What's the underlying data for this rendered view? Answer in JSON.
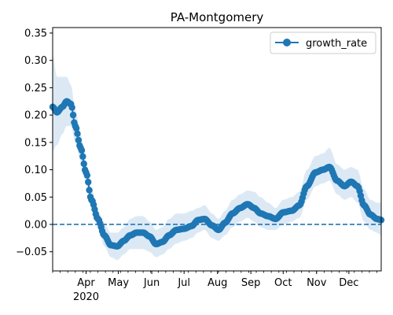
{
  "chart_data": {
    "type": "line",
    "title": "PA-Montgomery",
    "xlabel": "",
    "ylabel": "",
    "x_start": "2020-03-01",
    "x_end": "2020-12-31",
    "xlim": [
      "2020-03-01",
      "2020-12-31"
    ],
    "ylim": [
      -0.085,
      0.36
    ],
    "yticks": [
      -0.05,
      0.0,
      0.05,
      0.1,
      0.15,
      0.2,
      0.25,
      0.3,
      0.35
    ],
    "ytick_labels": [
      "−0.05",
      "0.00",
      "0.05",
      "0.10",
      "0.15",
      "0.20",
      "0.25",
      "0.30",
      "0.35"
    ],
    "xtick_labels": [
      {
        "date": "2020-04-01",
        "label": "Apr",
        "sublabel": "2020"
      },
      {
        "date": "2020-05-01",
        "label": "May"
      },
      {
        "date": "2020-06-01",
        "label": "Jun"
      },
      {
        "date": "2020-07-01",
        "label": "Jul"
      },
      {
        "date": "2020-08-01",
        "label": "Aug"
      },
      {
        "date": "2020-09-01",
        "label": "Sep"
      },
      {
        "date": "2020-10-01",
        "label": "Oct"
      },
      {
        "date": "2020-11-01",
        "label": "Nov"
      },
      {
        "date": "2020-12-01",
        "label": "Dec"
      }
    ],
    "legend": {
      "position": "top-right",
      "entries": [
        "growth_rate"
      ]
    },
    "reference_line": {
      "y": 0.0,
      "style": "dashed",
      "color": "#1f77b4"
    },
    "colors": {
      "series": "#1f77b4",
      "band": "#dce9f5"
    },
    "keypoints": [
      {
        "x": "2020-03-01",
        "y": 0.215,
        "lo": 0.135,
        "hi": 0.31
      },
      {
        "x": "2020-03-05",
        "y": 0.205,
        "lo": 0.145,
        "hi": 0.27
      },
      {
        "x": "2020-03-10",
        "y": 0.215,
        "lo": 0.165,
        "hi": 0.27
      },
      {
        "x": "2020-03-14",
        "y": 0.225,
        "lo": 0.18,
        "hi": 0.27
      },
      {
        "x": "2020-03-18",
        "y": 0.22,
        "lo": 0.18,
        "hi": 0.255
      },
      {
        "x": "2020-03-22",
        "y": 0.18,
        "lo": 0.15,
        "hi": 0.21
      },
      {
        "x": "2020-03-27",
        "y": 0.14,
        "lo": 0.115,
        "hi": 0.165
      },
      {
        "x": "2020-04-01",
        "y": 0.095,
        "lo": 0.075,
        "hi": 0.115
      },
      {
        "x": "2020-04-06",
        "y": 0.045,
        "lo": 0.03,
        "hi": 0.065
      },
      {
        "x": "2020-04-12",
        "y": 0.01,
        "lo": -0.005,
        "hi": 0.025
      },
      {
        "x": "2020-04-18",
        "y": -0.02,
        "lo": -0.04,
        "hi": 0.0
      },
      {
        "x": "2020-04-24",
        "y": -0.038,
        "lo": -0.06,
        "hi": -0.015
      },
      {
        "x": "2020-04-30",
        "y": -0.04,
        "lo": -0.065,
        "hi": -0.015
      },
      {
        "x": "2020-05-06",
        "y": -0.03,
        "lo": -0.055,
        "hi": -0.005
      },
      {
        "x": "2020-05-12",
        "y": -0.02,
        "lo": -0.045,
        "hi": 0.01
      },
      {
        "x": "2020-05-18",
        "y": -0.015,
        "lo": -0.045,
        "hi": 0.015
      },
      {
        "x": "2020-05-24",
        "y": -0.015,
        "lo": -0.045,
        "hi": 0.015
      },
      {
        "x": "2020-05-30",
        "y": -0.022,
        "lo": -0.05,
        "hi": 0.005
      },
      {
        "x": "2020-06-05",
        "y": -0.036,
        "lo": -0.06,
        "hi": -0.01
      },
      {
        "x": "2020-06-11",
        "y": -0.032,
        "lo": -0.055,
        "hi": -0.005
      },
      {
        "x": "2020-06-17",
        "y": -0.02,
        "lo": -0.045,
        "hi": 0.01
      },
      {
        "x": "2020-06-24",
        "y": -0.01,
        "lo": -0.035,
        "hi": 0.02
      },
      {
        "x": "2020-07-01",
        "y": -0.008,
        "lo": -0.03,
        "hi": 0.02
      },
      {
        "x": "2020-07-08",
        "y": -0.003,
        "lo": -0.025,
        "hi": 0.025
      },
      {
        "x": "2020-07-14",
        "y": 0.008,
        "lo": -0.015,
        "hi": 0.03
      },
      {
        "x": "2020-07-20",
        "y": 0.01,
        "lo": -0.01,
        "hi": 0.035
      },
      {
        "x": "2020-07-27",
        "y": -0.002,
        "lo": -0.025,
        "hi": 0.02
      },
      {
        "x": "2020-08-02",
        "y": -0.01,
        "lo": -0.03,
        "hi": 0.01
      },
      {
        "x": "2020-08-08",
        "y": 0.003,
        "lo": -0.02,
        "hi": 0.025
      },
      {
        "x": "2020-08-15",
        "y": 0.02,
        "lo": -0.005,
        "hi": 0.045
      },
      {
        "x": "2020-08-22",
        "y": 0.03,
        "lo": 0.005,
        "hi": 0.055
      },
      {
        "x": "2020-08-29",
        "y": 0.037,
        "lo": 0.012,
        "hi": 0.062
      },
      {
        "x": "2020-09-04",
        "y": 0.03,
        "lo": 0.005,
        "hi": 0.06
      },
      {
        "x": "2020-09-10",
        "y": 0.02,
        "lo": -0.005,
        "hi": 0.05
      },
      {
        "x": "2020-09-17",
        "y": 0.015,
        "lo": -0.01,
        "hi": 0.04
      },
      {
        "x": "2020-09-24",
        "y": 0.01,
        "lo": -0.01,
        "hi": 0.03
      },
      {
        "x": "2020-10-01",
        "y": 0.022,
        "lo": 0.0,
        "hi": 0.045
      },
      {
        "x": "2020-10-09",
        "y": 0.025,
        "lo": 0.005,
        "hi": 0.05
      },
      {
        "x": "2020-10-16",
        "y": 0.035,
        "lo": 0.012,
        "hi": 0.06
      },
      {
        "x": "2020-10-23",
        "y": 0.07,
        "lo": 0.045,
        "hi": 0.1
      },
      {
        "x": "2020-10-31",
        "y": 0.095,
        "lo": 0.07,
        "hi": 0.125
      },
      {
        "x": "2020-11-07",
        "y": 0.1,
        "lo": 0.075,
        "hi": 0.13
      },
      {
        "x": "2020-11-13",
        "y": 0.105,
        "lo": 0.08,
        "hi": 0.14
      },
      {
        "x": "2020-11-20",
        "y": 0.08,
        "lo": 0.055,
        "hi": 0.11
      },
      {
        "x": "2020-11-27",
        "y": 0.07,
        "lo": 0.045,
        "hi": 0.1
      },
      {
        "x": "2020-12-03",
        "y": 0.078,
        "lo": 0.05,
        "hi": 0.105
      },
      {
        "x": "2020-12-09",
        "y": 0.07,
        "lo": 0.04,
        "hi": 0.1
      },
      {
        "x": "2020-12-15",
        "y": 0.035,
        "lo": 0.005,
        "hi": 0.065
      },
      {
        "x": "2020-12-21",
        "y": 0.018,
        "lo": -0.01,
        "hi": 0.045
      },
      {
        "x": "2020-12-27",
        "y": 0.01,
        "lo": -0.015,
        "hi": 0.04
      },
      {
        "x": "2020-12-31",
        "y": 0.008,
        "lo": -0.02,
        "hi": 0.04
      }
    ]
  }
}
